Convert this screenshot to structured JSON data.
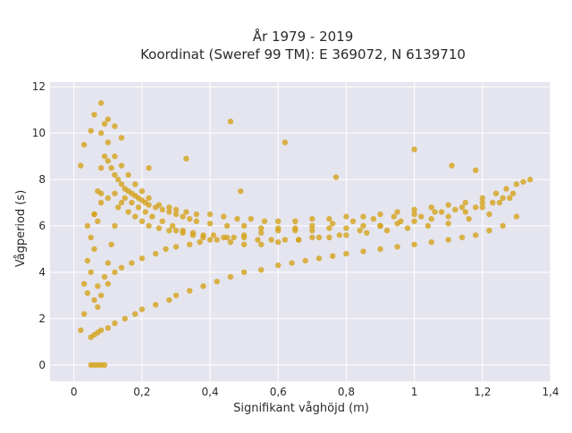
{
  "chart_data": {
    "type": "scatter",
    "title": "År 1979 - 2019",
    "subtitle": "Koordinat (Sweref 99 TM): E 369072, N 6139710",
    "xlabel": "Signifikant våghöjd (m)",
    "ylabel": "Vågperiod (s)",
    "xlim": [
      -0.07,
      1.4
    ],
    "ylim": [
      -0.7,
      12.2
    ],
    "x_ticks": [
      0,
      0.2,
      0.4,
      0.6,
      0.8,
      1,
      1.2,
      1.4
    ],
    "x_tick_labels": [
      "0",
      "0,2",
      "0,4",
      "0,6",
      "0,8",
      "1",
      "1,2",
      "1,4"
    ],
    "y_ticks": [
      0,
      2,
      4,
      6,
      8,
      10,
      12
    ],
    "y_tick_labels": [
      "0",
      "2",
      "4",
      "6",
      "8",
      "10",
      "12"
    ],
    "grid": true,
    "legend": "none",
    "marker_color": "#D4A21A",
    "plot_background": "#E5E5EF",
    "series": [
      {
        "x": [
          0.02,
          0.03,
          0.04,
          0.05,
          0.06,
          0.07,
          0.08,
          0.02,
          0.03,
          0.05,
          0.06,
          0.08,
          0.09,
          0.1,
          0.12,
          0.14,
          0.16,
          0.18,
          0.2,
          0.22,
          0.25,
          0.28,
          0.3,
          0.33,
          0.36,
          0.4,
          0.44,
          0.48,
          0.52,
          0.56,
          0.6,
          0.65,
          0.7,
          0.75,
          0.8,
          0.85,
          0.9,
          0.95,
          1.0,
          1.05,
          1.1,
          1.15,
          1.2,
          1.24,
          1.27,
          1.3,
          1.32,
          1.34,
          0.05,
          0.06,
          0.07,
          0.08,
          0.1,
          0.12,
          0.15,
          0.18,
          0.2,
          0.24,
          0.28,
          0.3,
          0.34,
          0.38,
          0.42,
          0.46,
          0.5,
          0.55,
          0.6,
          0.64,
          0.68,
          0.72,
          0.76,
          0.8,
          0.85,
          0.9,
          0.95,
          1.0,
          1.05,
          1.1,
          1.14,
          1.18,
          1.22,
          1.26,
          1.3,
          0.07,
          0.08,
          0.1,
          0.12,
          0.14,
          0.17,
          0.2,
          0.24,
          0.27,
          0.3,
          0.34,
          0.37,
          0.4,
          0.45,
          0.5,
          0.55,
          0.6,
          0.65,
          0.7,
          0.76,
          0.82,
          0.88,
          0.94,
          1.0,
          1.06,
          1.12,
          1.18,
          1.23,
          1.28,
          0.04,
          0.06,
          0.08,
          0.1,
          0.12,
          0.14,
          0.16,
          0.18,
          0.2,
          0.22,
          0.25,
          0.28,
          0.3,
          0.32,
          0.35,
          0.38,
          0.41,
          0.44,
          0.47,
          0.5,
          0.54,
          0.58,
          0.62,
          0.66,
          0.7,
          0.75,
          0.8,
          0.86,
          0.92,
          0.98,
          1.04,
          1.1,
          1.16,
          1.22,
          0.03,
          0.04,
          0.05,
          0.06,
          0.07,
          0.08,
          0.09,
          0.1,
          0.11,
          0.12,
          0.13,
          0.14,
          0.15,
          0.16,
          0.17,
          0.18,
          0.19,
          0.2,
          0.21,
          0.22,
          0.24,
          0.26,
          0.28,
          0.3,
          0.32,
          0.34,
          0.36,
          0.4,
          0.45,
          0.5,
          0.55,
          0.6,
          0.65,
          0.7,
          0.75,
          0.8,
          0.85,
          0.9,
          0.95,
          1.0,
          1.05,
          1.1,
          1.15,
          1.2,
          1.25,
          1.29,
          0.06,
          0.07,
          0.09,
          0.1,
          0.11,
          0.12,
          0.13,
          0.15,
          0.17,
          0.19,
          0.21,
          0.23,
          0.26,
          0.29,
          0.32,
          0.35,
          0.38,
          0.42,
          0.46,
          0.5,
          0.55,
          0.6,
          0.66,
          0.72,
          0.78,
          0.84,
          0.9,
          0.96,
          1.02,
          1.08,
          1.14,
          1.2,
          1.26,
          0.08,
          0.1,
          0.12,
          0.14,
          0.22,
          0.33,
          0.46,
          0.49,
          0.62,
          0.77,
          1.0,
          1.11,
          1.18,
          0.05,
          0.06,
          0.07,
          0.08,
          0.09
        ],
        "y": [
          1.5,
          2.2,
          3.1,
          4.0,
          5.0,
          6.2,
          7.4,
          8.6,
          9.5,
          10.1,
          10.8,
          11.3,
          10.4,
          9.6,
          9.0,
          8.6,
          8.2,
          7.8,
          7.5,
          7.2,
          6.9,
          6.8,
          6.7,
          6.6,
          6.5,
          6.5,
          6.4,
          6.3,
          6.3,
          6.2,
          6.2,
          6.2,
          6.3,
          6.3,
          6.4,
          6.4,
          6.5,
          6.6,
          6.7,
          6.8,
          6.9,
          7.0,
          7.2,
          7.4,
          7.6,
          7.8,
          7.9,
          8.0,
          1.2,
          1.3,
          1.4,
          1.5,
          1.6,
          1.8,
          2.0,
          2.2,
          2.4,
          2.6,
          2.8,
          3.0,
          3.2,
          3.4,
          3.6,
          3.8,
          4.0,
          4.1,
          4.3,
          4.4,
          4.5,
          4.6,
          4.7,
          4.8,
          4.9,
          5.0,
          5.1,
          5.2,
          5.3,
          5.4,
          5.5,
          5.6,
          5.8,
          6.0,
          6.4,
          2.5,
          3.0,
          3.5,
          4.0,
          4.2,
          4.4,
          4.6,
          4.8,
          5.0,
          5.1,
          5.2,
          5.3,
          5.4,
          5.5,
          5.6,
          5.7,
          5.8,
          5.9,
          6.0,
          6.1,
          6.2,
          6.3,
          6.4,
          6.5,
          6.6,
          6.7,
          6.8,
          7.0,
          7.2,
          6.0,
          6.5,
          7.0,
          7.2,
          7.4,
          7.0,
          6.6,
          6.4,
          6.2,
          6.0,
          5.9,
          5.8,
          5.8,
          5.7,
          5.7,
          5.6,
          5.6,
          5.5,
          5.5,
          5.5,
          5.4,
          5.4,
          5.4,
          5.4,
          5.5,
          5.5,
          5.6,
          5.7,
          5.8,
          5.9,
          6.0,
          6.1,
          6.3,
          6.5,
          3.5,
          4.5,
          5.5,
          6.5,
          7.5,
          8.5,
          9.0,
          8.8,
          8.5,
          8.2,
          8.0,
          7.8,
          7.6,
          7.5,
          7.4,
          7.3,
          7.2,
          7.1,
          7.0,
          6.9,
          6.8,
          6.7,
          6.6,
          6.5,
          6.4,
          6.3,
          6.2,
          6.1,
          6.0,
          6.0,
          5.9,
          5.9,
          5.8,
          5.8,
          5.9,
          5.9,
          6.0,
          6.0,
          6.1,
          6.2,
          6.3,
          6.4,
          6.6,
          6.8,
          7.0,
          7.4,
          2.8,
          3.4,
          3.8,
          4.4,
          5.2,
          6.0,
          6.8,
          7.2,
          7.0,
          6.8,
          6.6,
          6.4,
          6.2,
          6.0,
          5.8,
          5.6,
          5.5,
          5.4,
          5.3,
          5.2,
          5.2,
          5.3,
          5.4,
          5.5,
          5.6,
          5.8,
          6.0,
          6.2,
          6.4,
          6.6,
          6.8,
          7.0,
          7.2,
          10.0,
          10.6,
          10.3,
          9.8,
          8.5,
          8.9,
          10.5,
          7.5,
          9.6,
          8.1,
          9.3,
          8.6,
          8.4,
          0.0,
          0.0,
          0.0,
          0.0,
          0.0
        ]
      }
    ]
  }
}
